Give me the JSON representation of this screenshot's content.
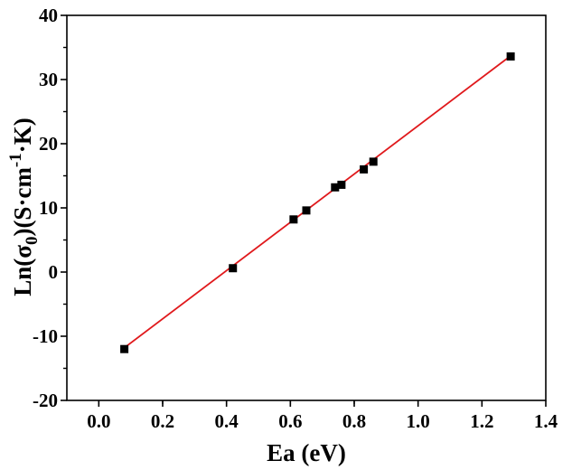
{
  "chart_data": {
    "type": "scatter",
    "title": "",
    "xlabel": "Ea (eV)",
    "ylabel": {
      "prefix": "Ln(σ",
      "sub": "0",
      "middle": ")(S·cm",
      "sup": "-1",
      "suffix": "·K)"
    },
    "xlim": [
      -0.1,
      1.4
    ],
    "ylim": [
      -20,
      40
    ],
    "xticks": [
      0.0,
      0.2,
      0.4,
      0.6,
      0.8,
      1.0,
      1.2,
      1.4
    ],
    "xtick_labels": [
      "0.0",
      "0.2",
      "0.4",
      "0.6",
      "0.8",
      "1.0",
      "1.2",
      "1.4"
    ],
    "yticks": [
      -20,
      -10,
      0,
      10,
      20,
      30,
      40
    ],
    "ytick_labels": [
      "-20",
      "-10",
      "0",
      "10",
      "20",
      "30",
      "40"
    ],
    "grid": false,
    "legend": false,
    "series": [
      {
        "name": "data",
        "marker": "square",
        "color": "#000000",
        "x": [
          0.08,
          0.42,
          0.61,
          0.65,
          0.74,
          0.76,
          0.83,
          0.86,
          1.29
        ],
        "y": [
          -12.0,
          0.6,
          8.2,
          9.6,
          13.2,
          13.6,
          16.0,
          17.2,
          33.6
        ]
      }
    ],
    "fit_line": {
      "name": "linear fit",
      "color": "#e0191c",
      "x": [
        0.08,
        1.29
      ],
      "y": [
        -11.8,
        33.7
      ]
    }
  }
}
